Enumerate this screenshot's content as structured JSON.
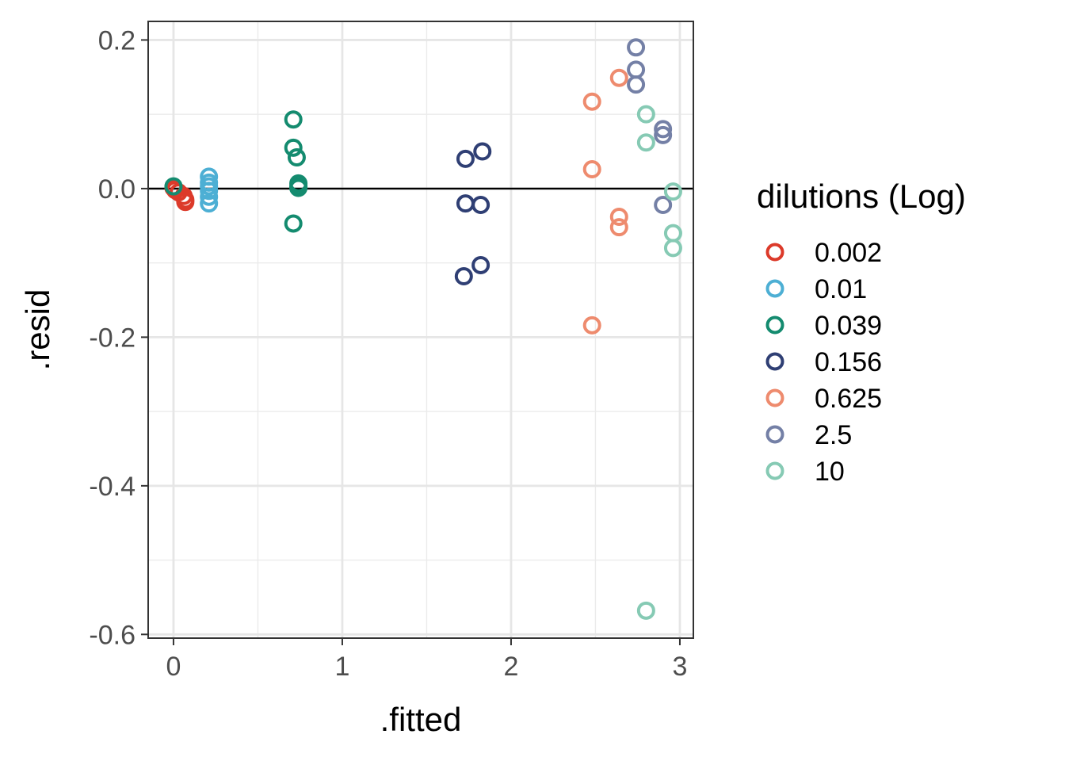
{
  "chart_data": {
    "type": "scatter",
    "title": "",
    "xlabel": ".fitted",
    "ylabel": ".resid",
    "xlim": [
      -0.15,
      3.08
    ],
    "ylim": [
      -0.605,
      0.225
    ],
    "xticks": [
      0,
      1,
      2,
      3
    ],
    "xtick_labels": [
      "0",
      "1",
      "2",
      "3"
    ],
    "yticks": [
      0.2,
      0.0,
      -0.2,
      -0.4,
      -0.6
    ],
    "ytick_labels": [
      "0.2",
      "0.0",
      "-0.2",
      "-0.4",
      "-0.6"
    ],
    "x_minor_ticks": [
      0.5,
      1.5,
      2.5
    ],
    "y_minor_ticks": [
      0.1,
      -0.1,
      -0.3,
      -0.5
    ],
    "grid": true,
    "reference_line_y": 0,
    "marker": "open-circle",
    "legend": {
      "title": "dilutions (Log)",
      "position": "right"
    },
    "series": [
      {
        "name": "0.002",
        "color": "#DC3A2A",
        "points": [
          [
            0.0,
            0.002
          ],
          [
            0.0,
            0.001
          ],
          [
            0.01,
            -0.002
          ],
          [
            0.03,
            -0.005
          ],
          [
            0.06,
            -0.01
          ],
          [
            0.07,
            -0.015
          ],
          [
            0.07,
            -0.018
          ]
        ]
      },
      {
        "name": "0.01",
        "color": "#4DAFD4",
        "points": [
          [
            0.21,
            0.016
          ],
          [
            0.21,
            0.008
          ],
          [
            0.21,
            0.003
          ],
          [
            0.21,
            -0.003
          ],
          [
            0.21,
            -0.011
          ],
          [
            0.21,
            -0.02
          ]
        ]
      },
      {
        "name": "0.039",
        "color": "#148B6F",
        "points": [
          [
            0.0,
            0.003
          ],
          [
            0.71,
            0.093
          ],
          [
            0.71,
            0.055
          ],
          [
            0.73,
            0.042
          ],
          [
            0.74,
            0.007
          ],
          [
            0.74,
            0.003
          ],
          [
            0.74,
            0.001
          ],
          [
            0.71,
            -0.047
          ]
        ]
      },
      {
        "name": "0.156",
        "color": "#2F3F74",
        "points": [
          [
            1.73,
            0.04
          ],
          [
            1.83,
            0.05
          ],
          [
            1.73,
            -0.02
          ],
          [
            1.82,
            -0.022
          ],
          [
            1.72,
            -0.118
          ],
          [
            1.82,
            -0.103
          ]
        ]
      },
      {
        "name": "0.625",
        "color": "#EE8B6E",
        "points": [
          [
            2.48,
            0.117
          ],
          [
            2.64,
            0.149
          ],
          [
            2.48,
            0.026
          ],
          [
            2.64,
            -0.038
          ],
          [
            2.64,
            -0.052
          ],
          [
            2.48,
            -0.184
          ]
        ]
      },
      {
        "name": "2.5",
        "color": "#7480A6",
        "points": [
          [
            2.74,
            0.19
          ],
          [
            2.74,
            0.16
          ],
          [
            2.74,
            0.14
          ],
          [
            2.9,
            0.08
          ],
          [
            2.9,
            0.072
          ],
          [
            2.9,
            -0.022
          ]
        ]
      },
      {
        "name": "10",
        "color": "#86CAB4",
        "points": [
          [
            2.8,
            0.1
          ],
          [
            2.8,
            0.062
          ],
          [
            2.96,
            -0.004
          ],
          [
            2.96,
            -0.06
          ],
          [
            2.96,
            -0.08
          ],
          [
            2.8,
            -0.568
          ]
        ]
      }
    ]
  }
}
